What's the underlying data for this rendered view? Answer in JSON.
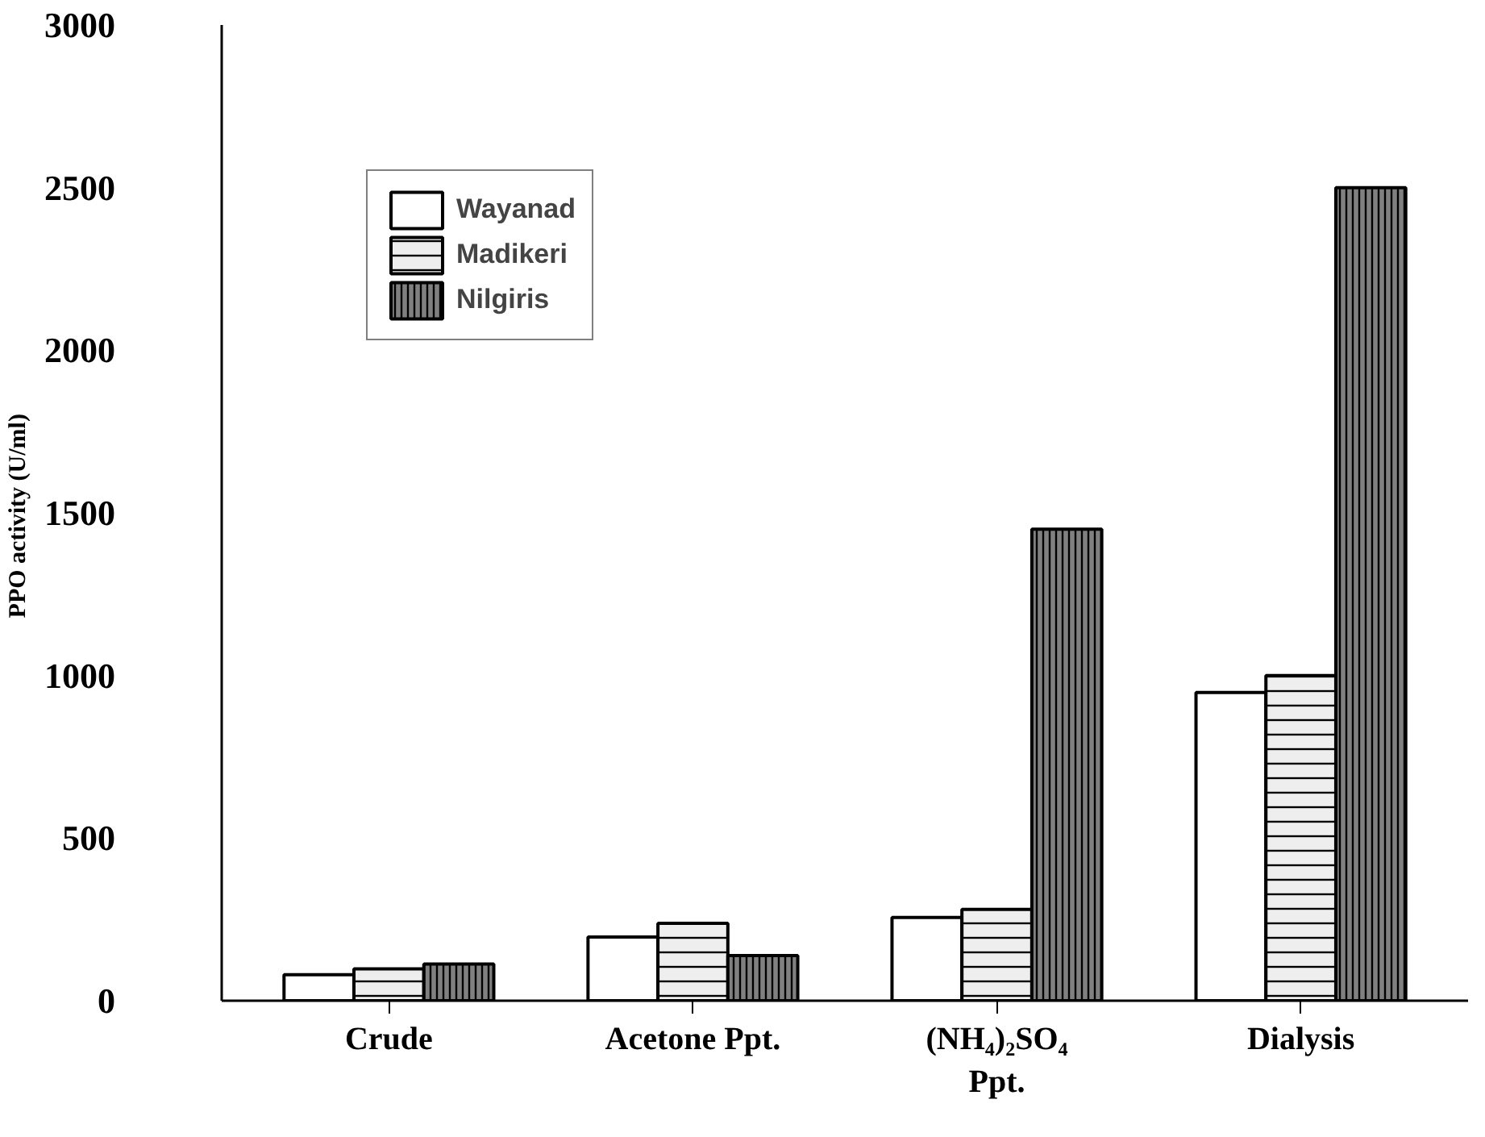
{
  "chart_data": {
    "type": "bar",
    "ylabel": "PPO activity  (U/ml)",
    "categories": [
      "Crude",
      "Acetone Ppt.",
      "(NH₄)₂SO₄ Ppt.",
      "Dialysis"
    ],
    "series": [
      {
        "name": "Wayanad",
        "color": "#ffffff",
        "values": [
          80,
          196,
          256,
          948
        ]
      },
      {
        "name": "Madikeri",
        "color": "#eeeeee",
        "values": [
          98,
          238,
          281,
          1000
        ]
      },
      {
        "name": "Nilgiris",
        "color": "#808080",
        "values": [
          113,
          139,
          1450,
          2500
        ]
      }
    ],
    "ylim": [
      0,
      3000
    ],
    "yticks": [
      0,
      500,
      1000,
      1500,
      2000,
      2500,
      3000
    ],
    "grid": false,
    "legend": "top left"
  }
}
